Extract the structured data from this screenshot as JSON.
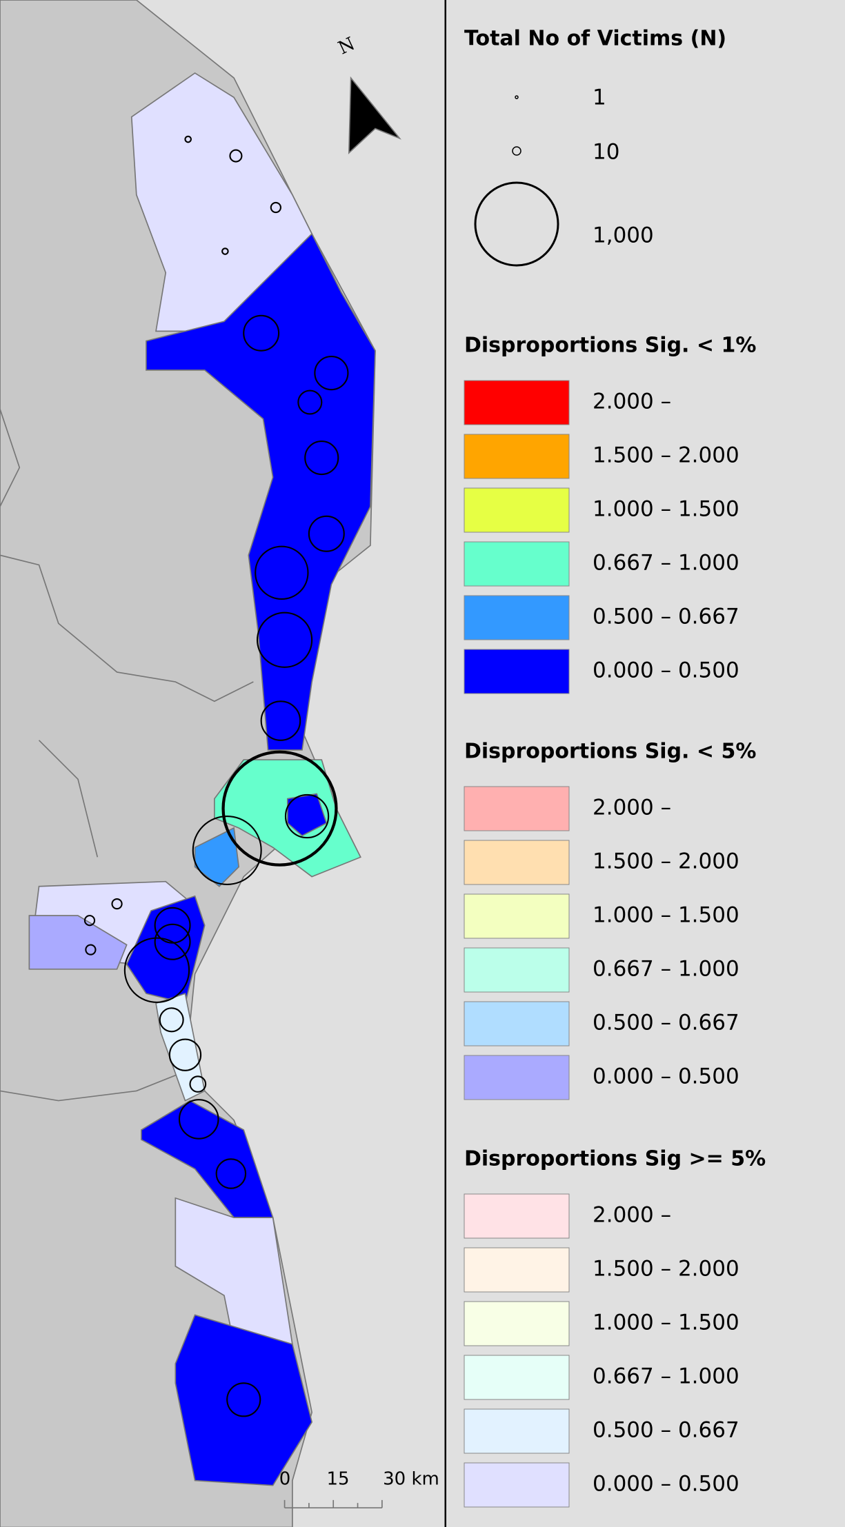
{
  "map_north": "N",
  "scale_bar": {
    "labels": [
      "0",
      "15",
      "30 km"
    ]
  },
  "legend": {
    "size": {
      "title": "Total No of Victims (N)",
      "entries": [
        "1",
        "10",
        "1,000"
      ]
    },
    "sections": [
      {
        "title": "Disproportions Sig. < 1%",
        "entries": [
          {
            "label": "2.000 –",
            "color": "#ff0000"
          },
          {
            "label": "1.500 – 2.000",
            "color": "#ffa500"
          },
          {
            "label": "1.000 – 1.500",
            "color": "#e6ff44"
          },
          {
            "label": "0.667 – 1.000",
            "color": "#66ffcc"
          },
          {
            "label": "0.500 – 0.667",
            "color": "#3399ff"
          },
          {
            "label": "0.000 – 0.500",
            "color": "#0000ff"
          }
        ]
      },
      {
        "title": "Disproportions Sig. < 5%",
        "entries": [
          {
            "label": "2.000 –",
            "color": "#ffb0b0"
          },
          {
            "label": "1.500 – 2.000",
            "color": "#ffdfb0"
          },
          {
            "label": "1.000 – 1.500",
            "color": "#f3ffc0"
          },
          {
            "label": "0.667 – 1.000",
            "color": "#bbffea"
          },
          {
            "label": "0.500 – 0.667",
            "color": "#b0ddff"
          },
          {
            "label": "0.000 – 0.500",
            "color": "#aaaaff"
          }
        ]
      },
      {
        "title": "Disproportions Sig >= 5%",
        "entries": [
          {
            "label": "2.000 –",
            "color": "#ffe2e6"
          },
          {
            "label": "1.500 – 2.000",
            "color": "#fff3e6"
          },
          {
            "label": "1.000 – 1.500",
            "color": "#f8ffe6"
          },
          {
            "label": "0.667 – 1.000",
            "color": "#e6fff8"
          },
          {
            "label": "0.500 – 0.667",
            "color": "#e2f2ff"
          },
          {
            "label": "0.000 – 0.500",
            "color": "#e0e0ff"
          }
        ]
      }
    ]
  }
}
